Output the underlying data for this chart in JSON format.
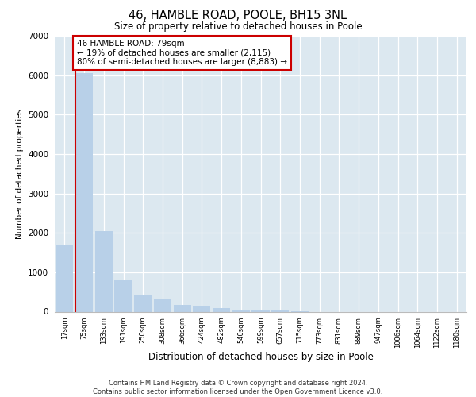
{
  "title_line1": "46, HAMBLE ROAD, POOLE, BH15 3NL",
  "title_line2": "Size of property relative to detached houses in Poole",
  "xlabel": "Distribution of detached houses by size in Poole",
  "ylabel": "Number of detached properties",
  "footer_line1": "Contains HM Land Registry data © Crown copyright and database right 2024.",
  "footer_line2": "Contains public sector information licensed under the Open Government Licence v3.0.",
  "annotation_line1": "46 HAMBLE ROAD: 79sqm",
  "annotation_line2": "← 19% of detached houses are smaller (2,115)",
  "annotation_line3": "80% of semi-detached houses are larger (8,883) →",
  "bar_color": "#b8d0e8",
  "highlight_color": "#cc0000",
  "background_color": "#dce8f0",
  "categories": [
    "17sqm",
    "75sqm",
    "133sqm",
    "191sqm",
    "250sqm",
    "308sqm",
    "366sqm",
    "424sqm",
    "482sqm",
    "540sqm",
    "599sqm",
    "657sqm",
    "715sqm",
    "773sqm",
    "831sqm",
    "889sqm",
    "947sqm",
    "1006sqm",
    "1064sqm",
    "1122sqm",
    "1180sqm"
  ],
  "values": [
    1700,
    6050,
    2050,
    790,
    410,
    320,
    170,
    140,
    100,
    50,
    50,
    40,
    5,
    0,
    0,
    0,
    0,
    0,
    0,
    0,
    0
  ],
  "red_line_x": 1,
  "ylim": [
    0,
    7000
  ],
  "yticks": [
    0,
    1000,
    2000,
    3000,
    4000,
    5000,
    6000,
    7000
  ]
}
